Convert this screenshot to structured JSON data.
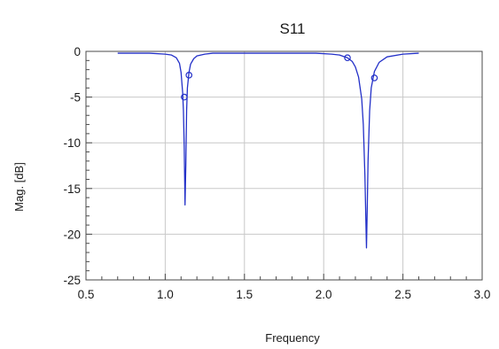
{
  "chart_data": {
    "type": "line",
    "title": "S11",
    "xlabel": "Frequency",
    "ylabel": "Mag. [dB]",
    "xlim": [
      0.5,
      3.0
    ],
    "ylim": [
      -25,
      0
    ],
    "x_ticks": [
      "0.5",
      "1.0",
      "1.5",
      "2.0",
      "2.5",
      "3.0"
    ],
    "y_ticks": [
      "0",
      "-5",
      "-10",
      "-15",
      "-20",
      "-25"
    ],
    "grid": true,
    "legend": "none",
    "series": [
      {
        "color": "#2330c8",
        "x": [
          0.7,
          0.9,
          1.0,
          1.04,
          1.07,
          1.09,
          1.1,
          1.11,
          1.115,
          1.12,
          1.125,
          1.13,
          1.135,
          1.14,
          1.15,
          1.16,
          1.18,
          1.2,
          1.25,
          1.3,
          1.4,
          1.6,
          1.8,
          1.95,
          2.05,
          2.1,
          2.15,
          2.18,
          2.2,
          2.22,
          2.24,
          2.25,
          2.26,
          2.265,
          2.27,
          2.275,
          2.28,
          2.29,
          2.3,
          2.32,
          2.35,
          2.4,
          2.5,
          2.6
        ],
        "y": [
          -0.2,
          -0.2,
          -0.3,
          -0.4,
          -0.7,
          -1.3,
          -2.3,
          -4.5,
          -6.5,
          -10.5,
          -16.8,
          -12.5,
          -6.5,
          -4.0,
          -2.3,
          -1.4,
          -0.8,
          -0.5,
          -0.3,
          -0.2,
          -0.2,
          -0.2,
          -0.2,
          -0.2,
          -0.3,
          -0.4,
          -0.7,
          -1.1,
          -1.7,
          -2.8,
          -5.2,
          -8.0,
          -13.5,
          -17.5,
          -21.5,
          -17.0,
          -12.0,
          -6.5,
          -4.0,
          -2.2,
          -1.2,
          -0.6,
          -0.3,
          -0.2
        ]
      }
    ],
    "markers": [
      {
        "x": 1.12,
        "y": -5.0
      },
      {
        "x": 1.15,
        "y": -2.6
      },
      {
        "x": 2.15,
        "y": -0.7
      },
      {
        "x": 2.32,
        "y": -2.9
      }
    ]
  }
}
